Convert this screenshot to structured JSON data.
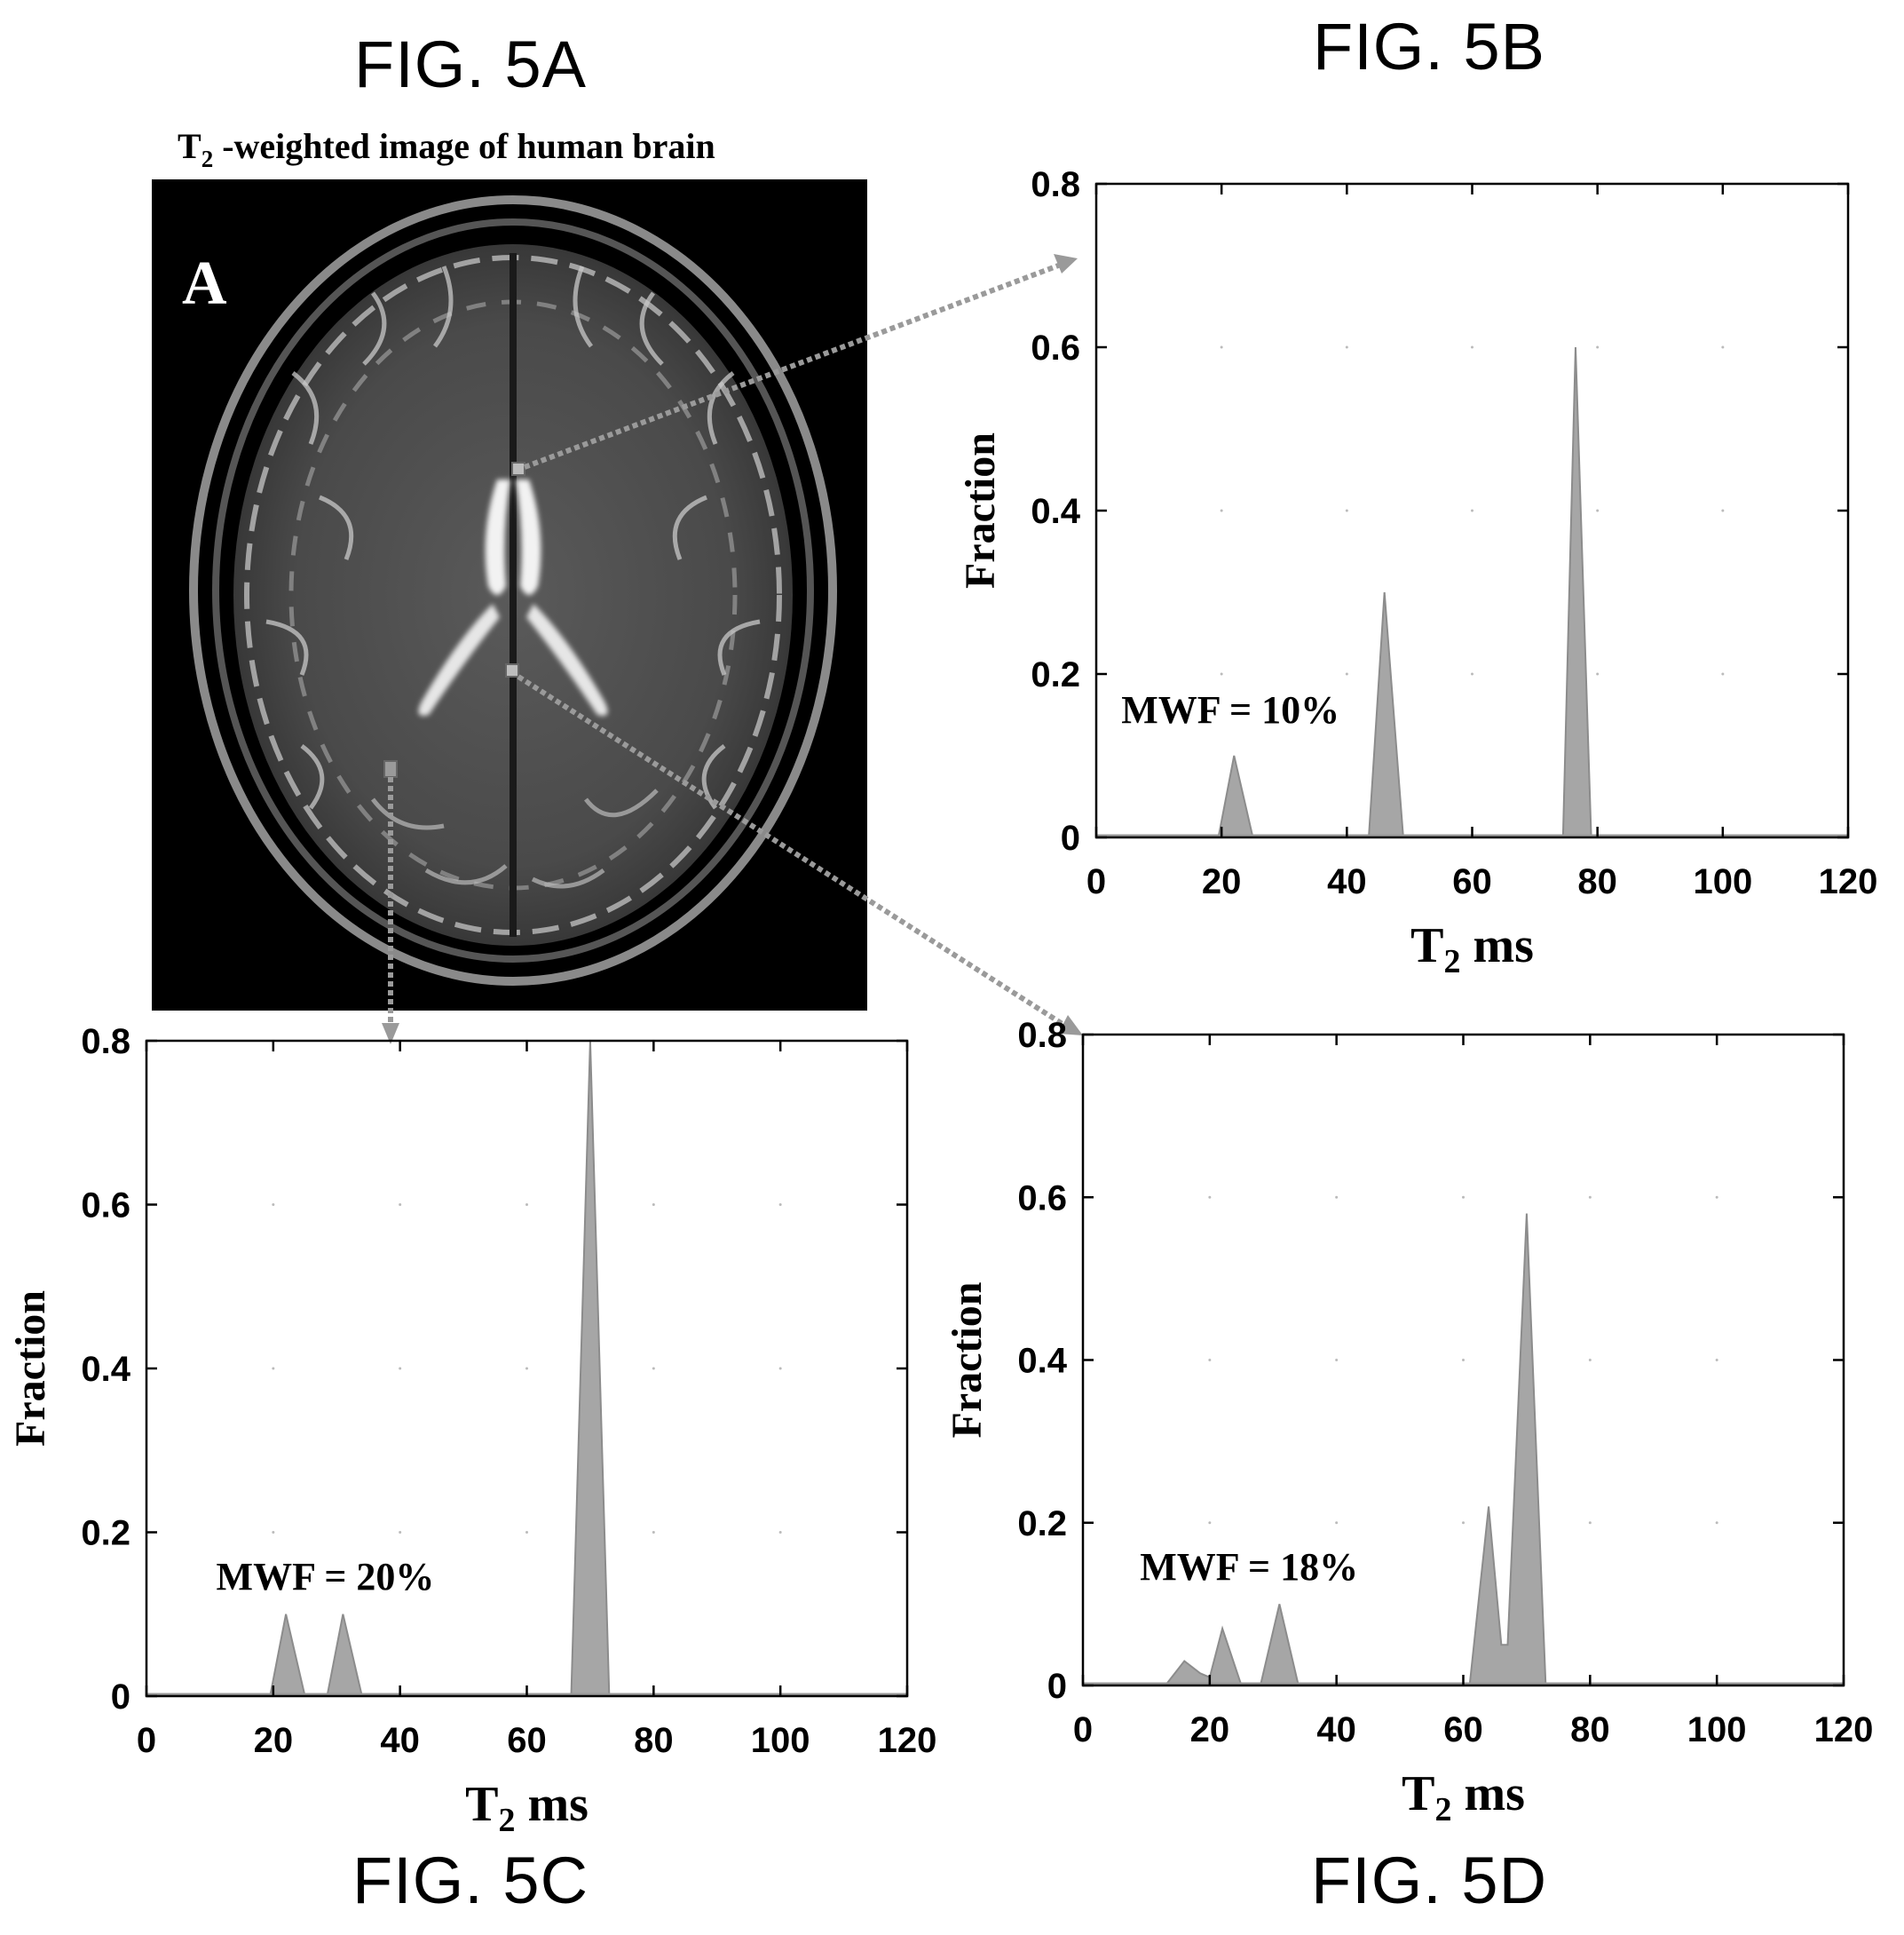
{
  "figure_labels": {
    "a": "FIG. 5A",
    "b": "FIG. 5B",
    "c": "FIG. 5C",
    "d": "FIG. 5D"
  },
  "image_panel": {
    "title_main": "T",
    "title_sub": "2",
    "title_rest": " -weighted image of human brain",
    "panel_letter": "A",
    "description_icon": "axial-mri-brain-slice"
  },
  "colors": {
    "fill": "#a6a6a6",
    "axis": "#000000",
    "arrow": "#9a9a9a",
    "background": "#000000"
  },
  "chart_data": [
    {
      "id": "5B",
      "type": "area",
      "xlabel_main": "T",
      "xlabel_sub": "2",
      "xlabel_rest": " ms",
      "ylabel": "Fraction",
      "xlim": [
        0,
        120
      ],
      "ylim": [
        0,
        0.8
      ],
      "xticks": [
        0,
        20,
        40,
        60,
        80,
        100,
        120
      ],
      "yticks": [
        0,
        0.2,
        0.4,
        0.6,
        0.8
      ],
      "ytick_labels": [
        "0",
        "0.2",
        "0.4",
        "0.6",
        "0.8"
      ],
      "annotation": "MWF = 10%",
      "annotation_pos": [
        4,
        0.14
      ],
      "x": [
        0,
        19.5,
        22,
        25,
        43.5,
        46,
        49,
        73,
        74.5,
        76.5,
        79,
        120
      ],
      "y": [
        0,
        0,
        0.1,
        0,
        0,
        0.3,
        0,
        0,
        0,
        0.6,
        0,
        0
      ]
    },
    {
      "id": "5C",
      "type": "area",
      "xlabel_main": "T",
      "xlabel_sub": "2",
      "xlabel_rest": " ms",
      "ylabel": "Fraction",
      "xlim": [
        0,
        120
      ],
      "ylim": [
        0,
        0.8
      ],
      "xticks": [
        0,
        20,
        40,
        60,
        80,
        100,
        120
      ],
      "yticks": [
        0,
        0.2,
        0.4,
        0.6,
        0.8
      ],
      "ytick_labels": [
        "0",
        "0.2",
        "0.4",
        "0.6",
        "0.8"
      ],
      "annotation": "MWF = 20%",
      "annotation_pos": [
        11,
        0.13
      ],
      "x": [
        0,
        19.5,
        22,
        25,
        28.5,
        31,
        34,
        67,
        70,
        73,
        120
      ],
      "y": [
        0,
        0,
        0.1,
        0,
        0,
        0.1,
        0,
        0,
        0.8,
        0,
        0
      ]
    },
    {
      "id": "5D",
      "type": "area",
      "xlabel_main": "T",
      "xlabel_sub": "2",
      "xlabel_rest": " ms",
      "ylabel": "Fraction",
      "xlim": [
        0,
        120
      ],
      "ylim": [
        0,
        0.8
      ],
      "xticks": [
        0,
        20,
        40,
        60,
        80,
        100,
        120
      ],
      "yticks": [
        0,
        0.2,
        0.4,
        0.6,
        0.8
      ],
      "ytick_labels": [
        "0",
        "0.2",
        "0.4",
        "0.6",
        "0.8"
      ],
      "annotation": "MWF = 18%",
      "annotation_pos": [
        9,
        0.13
      ],
      "x": [
        0,
        13,
        16,
        18.5,
        20,
        22,
        25,
        28,
        31,
        34,
        61,
        64,
        66,
        67,
        70,
        73,
        120
      ],
      "y": [
        0,
        0,
        0.03,
        0.015,
        0.01,
        0.07,
        0,
        0,
        0.1,
        0,
        0,
        0.22,
        0.05,
        0.05,
        0.58,
        0,
        0
      ]
    }
  ]
}
